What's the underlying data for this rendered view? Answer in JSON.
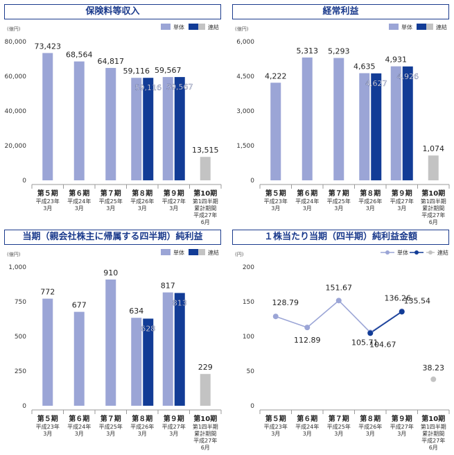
{
  "colors": {
    "solo": "#9ba5d6",
    "consolidated": "#123c96",
    "q1": "#c3c3c3",
    "axis": "#9a9a9a",
    "title_text": "#1a3a8c"
  },
  "categories": [
    {
      "period": "第５期",
      "date": [
        "平成23年",
        "3月"
      ]
    },
    {
      "period": "第６期",
      "date": [
        "平成24年",
        "3月"
      ]
    },
    {
      "period": "第７期",
      "date": [
        "平成25年",
        "3月"
      ]
    },
    {
      "period": "第８期",
      "date": [
        "平成26年",
        "3月"
      ]
    },
    {
      "period": "第９期",
      "date": [
        "平成27年",
        "3月"
      ]
    },
    {
      "period": "第10期",
      "date": [
        "第1四半期",
        "累計期間",
        "平成27年",
        "6月"
      ]
    }
  ],
  "chart_data": [
    {
      "type": "bar",
      "title": "保険料等収入",
      "unit": "(億円)",
      "legend": [
        "単体",
        "連結"
      ],
      "ylim": [
        0,
        80000
      ],
      "yticks": [
        "0",
        "20,000",
        "40,000",
        "60,000",
        "80,000"
      ],
      "series": [
        {
          "name": "単体",
          "values": [
            73423,
            68564,
            64817,
            59116,
            59567,
            13515
          ]
        },
        {
          "name": "連結",
          "values": [
            null,
            null,
            null,
            59116,
            59567,
            null
          ]
        }
      ],
      "labels_solo": [
        "73,423",
        "68,564",
        "64,817",
        "59,116",
        "59,567",
        "13,515"
      ],
      "labels_cons": [
        "",
        "",
        "",
        "59,116",
        "59,567",
        ""
      ]
    },
    {
      "type": "bar",
      "title": "経常利益",
      "unit": "(億円)",
      "legend": [
        "単体",
        "連結"
      ],
      "ylim": [
        0,
        6000
      ],
      "yticks": [
        "0",
        "1,500",
        "3,000",
        "4,500",
        "6,000"
      ],
      "series": [
        {
          "name": "単体",
          "values": [
            4222,
            5313,
            5293,
            4635,
            4931,
            1074
          ]
        },
        {
          "name": "連結",
          "values": [
            null,
            null,
            null,
            4627,
            4926,
            null
          ]
        }
      ],
      "labels_solo": [
        "4,222",
        "5,313",
        "5,293",
        "4,635",
        "4,931",
        "1,074"
      ],
      "labels_cons": [
        "",
        "",
        "",
        "4,627",
        "4,926",
        ""
      ]
    },
    {
      "type": "bar",
      "title": "当期（親会社株主に帰属する四半期）純利益",
      "unit": "(億円)",
      "legend": [
        "単体",
        "連結"
      ],
      "ylim": [
        0,
        1000
      ],
      "yticks": [
        "0",
        "250",
        "500",
        "750",
        "1,000"
      ],
      "series": [
        {
          "name": "単体",
          "values": [
            772,
            677,
            910,
            634,
            817,
            229
          ]
        },
        {
          "name": "連結",
          "values": [
            null,
            null,
            null,
            628,
            813,
            null
          ]
        }
      ],
      "labels_solo": [
        "772",
        "677",
        "910",
        "634",
        "817",
        "229"
      ],
      "labels_cons": [
        "",
        "",
        "",
        "628",
        "813",
        ""
      ]
    },
    {
      "type": "line",
      "title": "１株当たり当期（四半期）純利益金額",
      "unit": "(円)",
      "legend": [
        "単体",
        "連結"
      ],
      "ylim": [
        0,
        200
      ],
      "yticks": [
        "0",
        "50",
        "100",
        "150",
        "200"
      ],
      "series": [
        {
          "name": "単体",
          "values": [
            128.79,
            112.89,
            151.67,
            105.71,
            136.26,
            38.23
          ]
        },
        {
          "name": "連結",
          "values": [
            null,
            null,
            null,
            104.67,
            135.54,
            null
          ]
        }
      ],
      "labels_solo": [
        "128.79",
        "112.89",
        "151.67",
        "105.71",
        "136.26",
        "38.23"
      ],
      "labels_cons": [
        "",
        "",
        "",
        "104.67",
        "135.54",
        ""
      ]
    }
  ]
}
